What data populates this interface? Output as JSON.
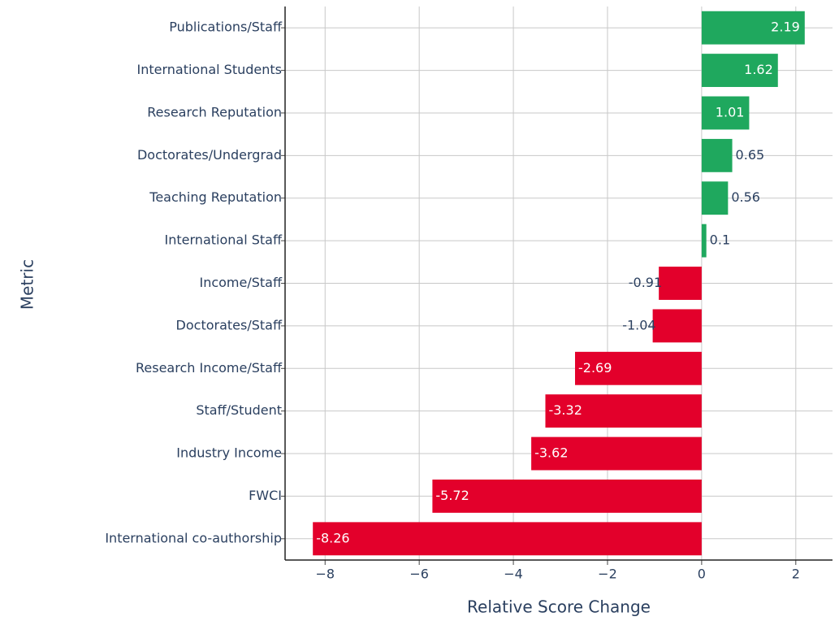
{
  "chart_data": {
    "type": "barh",
    "xlabel": "Relative Score Change",
    "ylabel": "Metric",
    "categories": [
      "Publications/Staff",
      "International Students",
      "Research Reputation",
      "Doctorates/Undergrad",
      "Teaching Reputation",
      "International Staff",
      "Income/Staff",
      "Doctorates/Staff",
      "Research Income/Staff",
      "Staff/Student",
      "Industry Income",
      "FWCI",
      "International co-authorship"
    ],
    "values": [
      2.19,
      1.62,
      1.01,
      0.65,
      0.56,
      0.1,
      -0.91,
      -1.04,
      -2.69,
      -3.32,
      -3.62,
      -5.72,
      -8.26
    ],
    "colors": [
      "#1fa85e",
      "#1fa85e",
      "#1fa85e",
      "#1fa85e",
      "#1fa85e",
      "#1fa85e",
      "#e3002b",
      "#e3002b",
      "#e3002b",
      "#e3002b",
      "#e3002b",
      "#e3002b",
      "#e3002b"
    ],
    "xlim": [
      -8.85,
      2.78
    ],
    "xticks": [
      {
        "value": -8,
        "label": "−8"
      },
      {
        "value": -6,
        "label": "−6"
      },
      {
        "value": -4,
        "label": "−4"
      },
      {
        "value": -2,
        "label": "−2"
      },
      0,
      2
    ],
    "grid": true
  }
}
